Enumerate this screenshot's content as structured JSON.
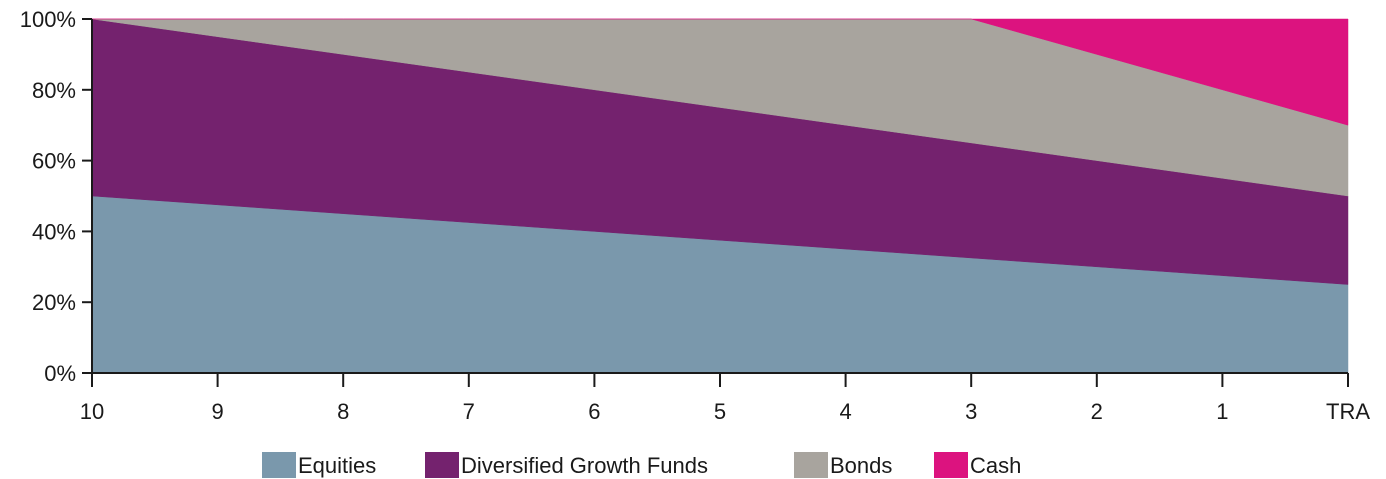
{
  "chart_data": {
    "type": "area",
    "stacked": true,
    "percent": true,
    "categories": [
      "10",
      "9",
      "8",
      "7",
      "6",
      "5",
      "4",
      "3",
      "2",
      "1",
      "TRA"
    ],
    "ylim": [
      0,
      100
    ],
    "yticks": [
      "0%",
      "20%",
      "40%",
      "60%",
      "80%",
      "100%"
    ],
    "ytick_values": [
      0,
      20,
      40,
      60,
      80,
      100
    ],
    "grid": false,
    "legend_position": "bottom",
    "series": [
      {
        "name": "Equities",
        "color": "#7a98ac",
        "values": [
          50,
          47.5,
          45,
          42.5,
          40,
          37.5,
          35,
          32.5,
          30,
          27.5,
          25
        ]
      },
      {
        "name": "Diversified Growth Funds",
        "color": "#74226e",
        "values": [
          50,
          47.5,
          45,
          42.5,
          40,
          37.5,
          35,
          32.5,
          30,
          27.5,
          25
        ]
      },
      {
        "name": "Bonds",
        "color": "#a8a49e",
        "values": [
          0,
          5,
          10,
          15,
          20,
          25,
          30,
          35,
          30,
          25,
          20
        ]
      },
      {
        "name": "Cash",
        "color": "#dc137f",
        "values": [
          0,
          0,
          0,
          0,
          0,
          0,
          0,
          0,
          10,
          20,
          30
        ]
      }
    ]
  }
}
